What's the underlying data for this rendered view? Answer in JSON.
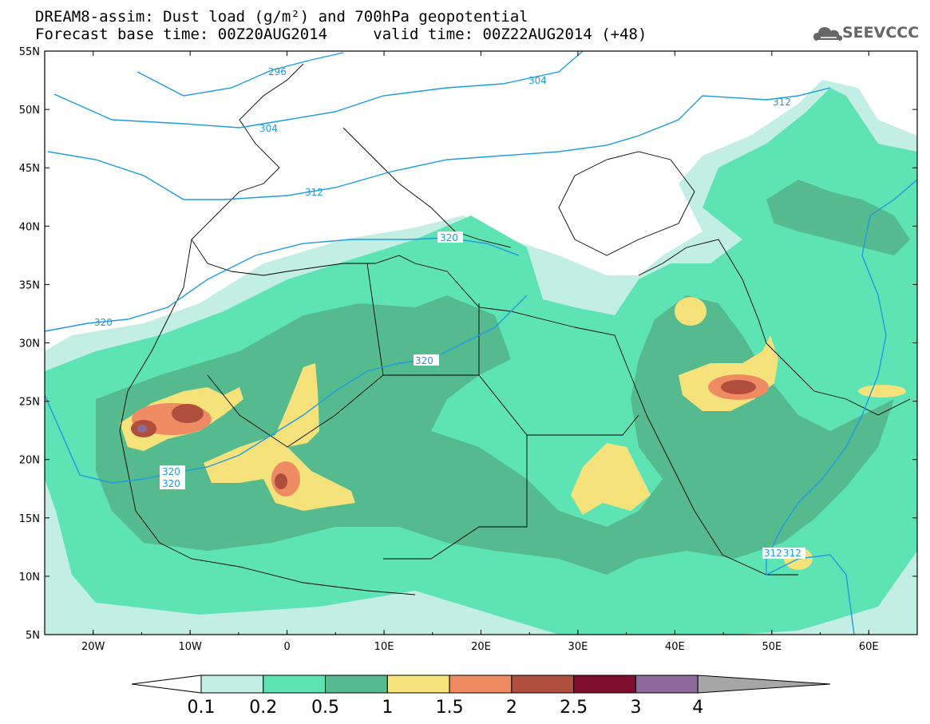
{
  "title": {
    "line1": "DREAM8-assim: Dust load (g/m²) and 700hPa geopotential",
    "line2_base": "Forecast base time: 00Z20AUG2014",
    "line2_valid": "valid time: 00Z22AUG2014 (+48)"
  },
  "logo": {
    "text": "SEEVCCC",
    "icon": "cloud-icon"
  },
  "map": {
    "lon_range": [
      -25,
      65
    ],
    "lat_range": [
      5,
      55
    ],
    "lat_ticks": [
      "5N",
      "10N",
      "15N",
      "20N",
      "25N",
      "30N",
      "35N",
      "40N",
      "45N",
      "50N",
      "55N"
    ],
    "lon_ticks": [
      "20W",
      "10W",
      "0",
      "10E",
      "20E",
      "30E",
      "40E",
      "50E",
      "60E"
    ]
  },
  "contour_labels": [
    "296",
    "304",
    "304",
    "312",
    "312",
    "320",
    "320",
    "320",
    "320",
    "320",
    "312",
    "312"
  ],
  "colorbar": {
    "labels": [
      "0.1",
      "0.2",
      "0.5",
      "1",
      "1.5",
      "2",
      "2.5",
      "3",
      "4"
    ],
    "colors": [
      "#c3eee3",
      "#5ee3b4",
      "#55bb8e",
      "#f6e27a",
      "#ef8b62",
      "#b04e3e",
      "#7e0e2c",
      "#8e6a9c",
      "#a6a6a6"
    ]
  }
}
